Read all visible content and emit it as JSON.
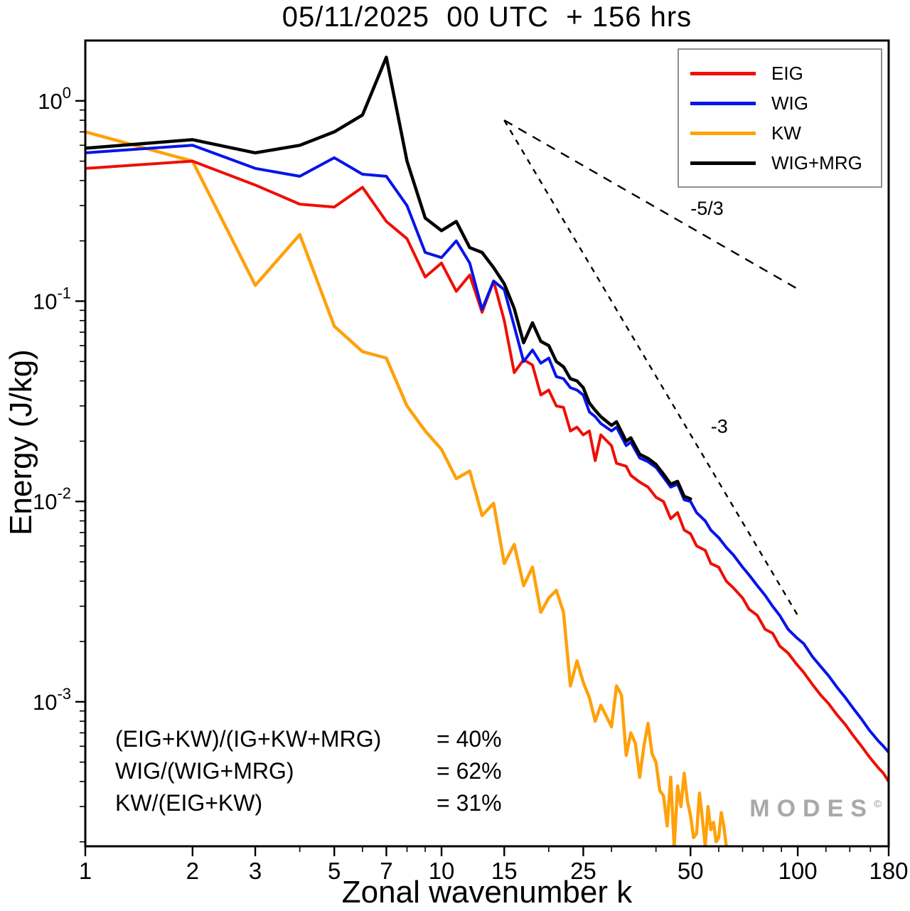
{
  "title": "05/11/2025  00 UTC  + 156 hrs",
  "watermark": {
    "text": "MODES",
    "sup": "©"
  },
  "annotations": {
    "rows": [
      {
        "label": "(EIG+KW)/(IG+KW+MRG)",
        "value": "= 40%"
      },
      {
        "label": "WIG/(WIG+MRG)",
        "value": "= 62%"
      },
      {
        "label": "KW/(EIG+KW)",
        "value": "= 31%"
      }
    ]
  },
  "chart_data": {
    "type": "line",
    "title": "05/11/2025  00 UTC  + 156 hrs",
    "xlabel": "Zonal wavenumber k",
    "ylabel": "Energy (J/kg)",
    "x_scale": "log",
    "y_scale": "log",
    "xlim": [
      1,
      180
    ],
    "ylim": [
      0.00019,
      2.0
    ],
    "grid": false,
    "legend_position": "top-right",
    "x_major_ticks": [
      1,
      2,
      3,
      5,
      7,
      10,
      15,
      25,
      50,
      100,
      180
    ],
    "x_minor_ticks": [
      4,
      6,
      8,
      9,
      20,
      30,
      40,
      60,
      70,
      80,
      90,
      120,
      140,
      160
    ],
    "y_major_tick_exponents": [
      0,
      -1,
      -2,
      -3
    ],
    "series": [
      {
        "name": "EIG",
        "color": "#ee0f06",
        "width": 4,
        "points": [
          [
            1,
            0.46
          ],
          [
            2,
            0.5
          ],
          [
            3,
            0.38
          ],
          [
            4,
            0.305
          ],
          [
            5,
            0.295
          ],
          [
            6,
            0.37
          ],
          [
            7,
            0.25
          ],
          [
            8,
            0.205
          ],
          [
            9,
            0.132
          ],
          [
            10,
            0.155
          ],
          [
            11,
            0.112
          ],
          [
            12,
            0.135
          ],
          [
            13,
            0.088
          ],
          [
            14,
            0.126
          ],
          [
            15,
            0.08
          ],
          [
            16,
            0.044
          ],
          [
            17,
            0.051
          ],
          [
            18,
            0.048
          ],
          [
            19,
            0.034
          ],
          [
            20,
            0.036
          ],
          [
            21,
            0.03
          ],
          [
            22,
            0.0295
          ],
          [
            23,
            0.0225
          ],
          [
            24,
            0.0235
          ],
          [
            25,
            0.0215
          ],
          [
            26,
            0.0225
          ],
          [
            27,
            0.016
          ],
          [
            28,
            0.0215
          ],
          [
            30,
            0.019
          ],
          [
            31,
            0.0155
          ],
          [
            33,
            0.015
          ],
          [
            34,
            0.0135
          ],
          [
            36,
            0.0125
          ],
          [
            38,
            0.0118
          ],
          [
            40,
            0.0105
          ],
          [
            42,
            0.01
          ],
          [
            44,
            0.0082
          ],
          [
            46,
            0.0088
          ],
          [
            48,
            0.0072
          ],
          [
            50,
            0.0069
          ],
          [
            52,
            0.006
          ],
          [
            55,
            0.0057
          ],
          [
            57,
            0.0049
          ],
          [
            60,
            0.0047
          ],
          [
            63,
            0.004
          ],
          [
            66,
            0.0037
          ],
          [
            70,
            0.0033
          ],
          [
            73,
            0.0029
          ],
          [
            77,
            0.0027
          ],
          [
            81,
            0.0023
          ],
          [
            85,
            0.0022
          ],
          [
            89,
            0.0019
          ],
          [
            94,
            0.00175
          ],
          [
            99,
            0.00155
          ],
          [
            104,
            0.0014
          ],
          [
            110,
            0.00122
          ],
          [
            116,
            0.00108
          ],
          [
            122,
            0.00098
          ],
          [
            129,
            0.00086
          ],
          [
            136,
            0.00077
          ],
          [
            143,
            0.00068
          ],
          [
            151,
            0.0006
          ],
          [
            159,
            0.00053
          ],
          [
            168,
            0.00047
          ],
          [
            174,
            0.00044
          ],
          [
            180,
            0.0004
          ]
        ]
      },
      {
        "name": "WIG",
        "color": "#0814e8",
        "width": 4,
        "points": [
          [
            1,
            0.55
          ],
          [
            2,
            0.6
          ],
          [
            3,
            0.46
          ],
          [
            4,
            0.42
          ],
          [
            5,
            0.52
          ],
          [
            6,
            0.43
          ],
          [
            7,
            0.42
          ],
          [
            8,
            0.3
          ],
          [
            9,
            0.175
          ],
          [
            10,
            0.165
          ],
          [
            11,
            0.2
          ],
          [
            12,
            0.155
          ],
          [
            13,
            0.091
          ],
          [
            14,
            0.126
          ],
          [
            15,
            0.114
          ],
          [
            16,
            0.075
          ],
          [
            17,
            0.05
          ],
          [
            18,
            0.057
          ],
          [
            19,
            0.049
          ],
          [
            20,
            0.052
          ],
          [
            21,
            0.042
          ],
          [
            22,
            0.041
          ],
          [
            23,
            0.037
          ],
          [
            24,
            0.036
          ],
          [
            25,
            0.034
          ],
          [
            26,
            0.028
          ],
          [
            27,
            0.0265
          ],
          [
            28,
            0.0245
          ],
          [
            30,
            0.0225
          ],
          [
            31,
            0.0235
          ],
          [
            33,
            0.019
          ],
          [
            34,
            0.0198
          ],
          [
            36,
            0.0165
          ],
          [
            38,
            0.0158
          ],
          [
            40,
            0.0148
          ],
          [
            42,
            0.0132
          ],
          [
            44,
            0.0118
          ],
          [
            46,
            0.0122
          ],
          [
            48,
            0.0102
          ],
          [
            50,
            0.01
          ],
          [
            52,
            0.0088
          ],
          [
            55,
            0.008
          ],
          [
            57,
            0.0072
          ],
          [
            60,
            0.0066
          ],
          [
            63,
            0.0059
          ],
          [
            66,
            0.0054
          ],
          [
            70,
            0.0047
          ],
          [
            73,
            0.0043
          ],
          [
            77,
            0.0038
          ],
          [
            81,
            0.0034
          ],
          [
            85,
            0.003
          ],
          [
            89,
            0.0027
          ],
          [
            94,
            0.0023
          ],
          [
            99,
            0.0021
          ],
          [
            104,
            0.00195
          ],
          [
            110,
            0.00168
          ],
          [
            116,
            0.0015
          ],
          [
            122,
            0.00135
          ],
          [
            129,
            0.00118
          ],
          [
            136,
            0.00105
          ],
          [
            143,
            0.00093
          ],
          [
            151,
            0.00082
          ],
          [
            159,
            0.00072
          ],
          [
            168,
            0.00064
          ],
          [
            174,
            0.0006
          ],
          [
            180,
            0.00056
          ]
        ]
      },
      {
        "name": "KW",
        "color": "#ffa10c",
        "width": 4.5,
        "points": [
          [
            1,
            0.7
          ],
          [
            2,
            0.5
          ],
          [
            3,
            0.12
          ],
          [
            4,
            0.215
          ],
          [
            5,
            0.075
          ],
          [
            6,
            0.056
          ],
          [
            7,
            0.052
          ],
          [
            8,
            0.03
          ],
          [
            9,
            0.0225
          ],
          [
            10,
            0.0182
          ],
          [
            11,
            0.013
          ],
          [
            12,
            0.0142
          ],
          [
            13,
            0.0085
          ],
          [
            14,
            0.0098
          ],
          [
            15,
            0.0049
          ],
          [
            16,
            0.0061
          ],
          [
            17,
            0.0038
          ],
          [
            18,
            0.0047
          ],
          [
            19,
            0.0028
          ],
          [
            20,
            0.0033
          ],
          [
            21,
            0.0036
          ],
          [
            22,
            0.0028
          ],
          [
            23,
            0.0012
          ],
          [
            24,
            0.0016
          ],
          [
            25,
            0.00125
          ],
          [
            26,
            0.00105
          ],
          [
            27,
            0.0008
          ],
          [
            28,
            0.00096
          ],
          [
            29,
            0.00085
          ],
          [
            30,
            0.00075
          ],
          [
            31,
            0.0012
          ],
          [
            32,
            0.00108
          ],
          [
            33,
            0.00054
          ],
          [
            34,
            0.0007
          ],
          [
            35,
            0.00062
          ],
          [
            36,
            0.00042
          ],
          [
            37,
            0.0006
          ],
          [
            38,
            0.00078
          ],
          [
            39,
            0.00055
          ],
          [
            40,
            0.0005
          ],
          [
            41,
            0.00036
          ],
          [
            42,
            0.00034
          ],
          [
            43,
            0.00024
          ],
          [
            44,
            0.00042
          ],
          [
            45,
            0.00019
          ],
          [
            46,
            0.00038
          ],
          [
            47,
            0.0003
          ],
          [
            48,
            0.00044
          ],
          [
            49,
            0.00032
          ],
          [
            50,
            0.00027
          ],
          [
            51,
            0.00021
          ],
          [
            52,
            0.00022
          ],
          [
            53,
            0.00035
          ],
          [
            54,
            0.00026
          ],
          [
            55,
            0.00019
          ],
          [
            56,
            0.0003
          ],
          [
            57,
            0.00023
          ],
          [
            58,
            0.00025
          ],
          [
            59,
            0.0002
          ],
          [
            60,
            0.00021
          ],
          [
            61,
            0.00028
          ],
          [
            62,
            0.00024
          ],
          [
            63,
            0.00019
          ]
        ]
      },
      {
        "name": "WIG+MRG",
        "color": "#000000",
        "width": 4.5,
        "points": [
          [
            1,
            0.58
          ],
          [
            2,
            0.64
          ],
          [
            3,
            0.55
          ],
          [
            4,
            0.6
          ],
          [
            5,
            0.7
          ],
          [
            6,
            0.85
          ],
          [
            7,
            1.65
          ],
          [
            8,
            0.5
          ],
          [
            9,
            0.26
          ],
          [
            10,
            0.225
          ],
          [
            11,
            0.25
          ],
          [
            12,
            0.185
          ],
          [
            13,
            0.175
          ],
          [
            14,
            0.147
          ],
          [
            15,
            0.122
          ],
          [
            16,
            0.092
          ],
          [
            17,
            0.062
          ],
          [
            18,
            0.078
          ],
          [
            19,
            0.063
          ],
          [
            20,
            0.06
          ],
          [
            21,
            0.05
          ],
          [
            22,
            0.047
          ],
          [
            23,
            0.041
          ],
          [
            24,
            0.04
          ],
          [
            25,
            0.037
          ],
          [
            26,
            0.031
          ],
          [
            27,
            0.0285
          ],
          [
            28,
            0.0265
          ],
          [
            30,
            0.024
          ],
          [
            31,
            0.025
          ],
          [
            33,
            0.02
          ],
          [
            34,
            0.0208
          ],
          [
            36,
            0.0172
          ],
          [
            38,
            0.0164
          ],
          [
            40,
            0.0153
          ],
          [
            42,
            0.0137
          ],
          [
            44,
            0.0122
          ],
          [
            46,
            0.0126
          ],
          [
            48,
            0.0106
          ],
          [
            50,
            0.0103
          ]
        ]
      }
    ],
    "reference_lines": [
      {
        "label": "-5/3",
        "x": [
          15,
          100
        ],
        "y": [
          0.8,
          0.115
        ],
        "dash": "13 10",
        "label_at": [
          50,
          0.27
        ]
      },
      {
        "label": "-3",
        "x": [
          15,
          100
        ],
        "y": [
          0.8,
          0.0027
        ],
        "dash": "8 8",
        "label_at": [
          57,
          0.022
        ]
      }
    ]
  }
}
